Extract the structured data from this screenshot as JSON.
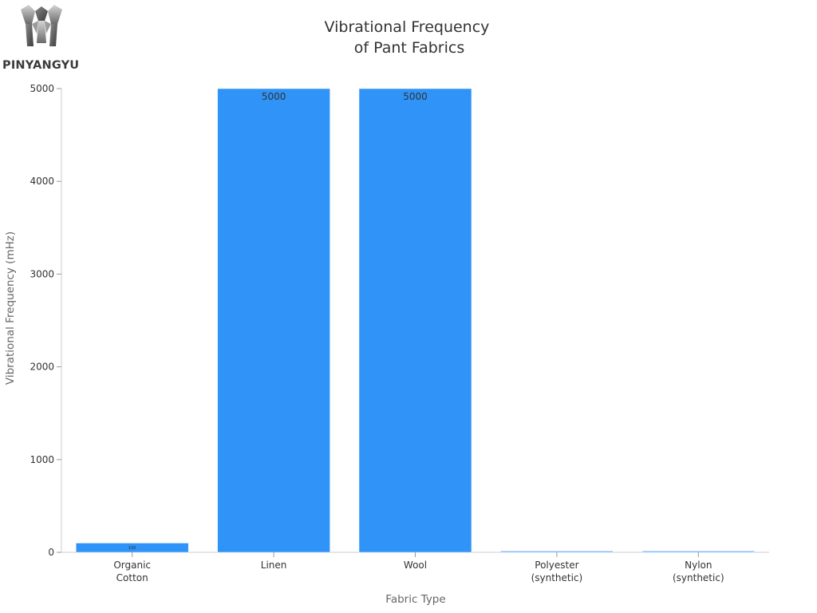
{
  "brand": {
    "logo_text": "PINYANGYU"
  },
  "chart_data": {
    "type": "bar",
    "title_lines": [
      "Vibrational Frequency",
      "of Pant Fabrics"
    ],
    "xlabel": "Fabric Type",
    "ylabel": "Vibrational Frequency (mHz)",
    "categories": [
      [
        "Organic",
        "Cotton"
      ],
      [
        "Linen"
      ],
      [
        "Wool"
      ],
      [
        "Polyester",
        "(synthetic)"
      ],
      [
        "Nylon",
        "(synthetic)"
      ]
    ],
    "values": [
      100,
      5000,
      5000,
      15,
      15
    ],
    "data_labels": [
      "100",
      "5000",
      "5000",
      "",
      ""
    ],
    "ylim": [
      0,
      5000
    ],
    "yticks": [
      0,
      1000,
      2000,
      3000,
      4000,
      5000
    ],
    "colors": {
      "bar": "#2f93f8",
      "bar_light": "#6fb4fb",
      "axis": "#cccccc"
    },
    "grid": false,
    "legend": "none"
  }
}
